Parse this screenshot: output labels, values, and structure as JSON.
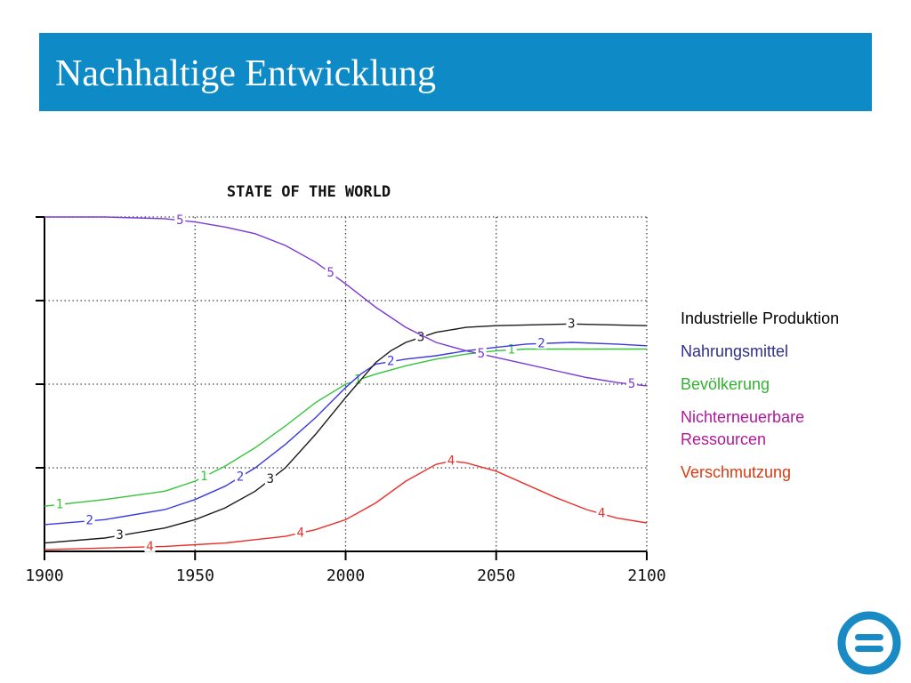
{
  "slide": {
    "title": "Nachhaltige Entwicklung"
  },
  "colors": {
    "title_bar": "#0e8ac7",
    "logo": "#1a8ac4"
  },
  "chart_data": {
    "type": "line",
    "title": "STATE OF THE WORLD",
    "x_ticks": [
      1900,
      1950,
      2000,
      2050,
      2100
    ],
    "xlim": [
      1900,
      2100
    ],
    "ylim": [
      0,
      1
    ],
    "grid": true,
    "series": [
      {
        "key": "1",
        "color": "#33c43a",
        "marker_x": [
          1905,
          1953,
          2004,
          2055
        ],
        "points": [
          [
            1900,
            0.135
          ],
          [
            1920,
            0.155
          ],
          [
            1940,
            0.18
          ],
          [
            1950,
            0.21
          ],
          [
            1960,
            0.255
          ],
          [
            1970,
            0.31
          ],
          [
            1980,
            0.375
          ],
          [
            1990,
            0.445
          ],
          [
            2000,
            0.5
          ],
          [
            2010,
            0.53
          ],
          [
            2020,
            0.555
          ],
          [
            2030,
            0.575
          ],
          [
            2040,
            0.59
          ],
          [
            2050,
            0.6
          ],
          [
            2060,
            0.605
          ],
          [
            2075,
            0.605
          ],
          [
            2100,
            0.605
          ]
        ]
      },
      {
        "key": "2",
        "color": "#3a3ae0",
        "marker_x": [
          1915,
          1965,
          2015,
          2065
        ],
        "points": [
          [
            1900,
            0.08
          ],
          [
            1920,
            0.095
          ],
          [
            1940,
            0.125
          ],
          [
            1950,
            0.155
          ],
          [
            1960,
            0.195
          ],
          [
            1970,
            0.25
          ],
          [
            1980,
            0.32
          ],
          [
            1990,
            0.4
          ],
          [
            2000,
            0.49
          ],
          [
            2005,
            0.53
          ],
          [
            2010,
            0.56
          ],
          [
            2020,
            0.575
          ],
          [
            2030,
            0.585
          ],
          [
            2040,
            0.6
          ],
          [
            2050,
            0.61
          ],
          [
            2060,
            0.62
          ],
          [
            2075,
            0.625
          ],
          [
            2090,
            0.62
          ],
          [
            2100,
            0.615
          ]
        ]
      },
      {
        "key": "3",
        "color": "#1a1a1a",
        "marker_x": [
          1925,
          1975,
          2025,
          2075
        ],
        "points": [
          [
            1900,
            0.025
          ],
          [
            1920,
            0.04
          ],
          [
            1940,
            0.07
          ],
          [
            1950,
            0.095
          ],
          [
            1960,
            0.13
          ],
          [
            1970,
            0.18
          ],
          [
            1980,
            0.25
          ],
          [
            1990,
            0.35
          ],
          [
            2000,
            0.46
          ],
          [
            2010,
            0.565
          ],
          [
            2015,
            0.6
          ],
          [
            2020,
            0.625
          ],
          [
            2030,
            0.655
          ],
          [
            2040,
            0.67
          ],
          [
            2050,
            0.675
          ],
          [
            2075,
            0.68
          ],
          [
            2100,
            0.675
          ]
        ]
      },
      {
        "key": "4",
        "color": "#e8312a",
        "marker_x": [
          1935,
          1985,
          2035,
          2085
        ],
        "points": [
          [
            1900,
            0.005
          ],
          [
            1920,
            0.01
          ],
          [
            1940,
            0.015
          ],
          [
            1950,
            0.02
          ],
          [
            1960,
            0.025
          ],
          [
            1970,
            0.035
          ],
          [
            1980,
            0.045
          ],
          [
            1990,
            0.065
          ],
          [
            2000,
            0.095
          ],
          [
            2010,
            0.145
          ],
          [
            2020,
            0.21
          ],
          [
            2030,
            0.26
          ],
          [
            2035,
            0.27
          ],
          [
            2040,
            0.265
          ],
          [
            2050,
            0.24
          ],
          [
            2060,
            0.2
          ],
          [
            2070,
            0.16
          ],
          [
            2080,
            0.125
          ],
          [
            2090,
            0.1
          ],
          [
            2100,
            0.085
          ]
        ]
      },
      {
        "key": "5",
        "color": "#7a3ad6",
        "marker_x": [
          1945,
          1995,
          2045,
          2095
        ],
        "points": [
          [
            1900,
            1.0
          ],
          [
            1920,
            1.0
          ],
          [
            1940,
            0.995
          ],
          [
            1950,
            0.985
          ],
          [
            1960,
            0.97
          ],
          [
            1970,
            0.95
          ],
          [
            1980,
            0.915
          ],
          [
            1990,
            0.865
          ],
          [
            2000,
            0.8
          ],
          [
            2010,
            0.73
          ],
          [
            2020,
            0.67
          ],
          [
            2030,
            0.625
          ],
          [
            2040,
            0.6
          ],
          [
            2050,
            0.58
          ],
          [
            2060,
            0.56
          ],
          [
            2070,
            0.54
          ],
          [
            2080,
            0.52
          ],
          [
            2090,
            0.505
          ],
          [
            2100,
            0.495
          ]
        ]
      }
    ]
  },
  "legend": [
    {
      "label": "Industrielle Produktion",
      "color": "#000000"
    },
    {
      "label": "Nahrungsmittel",
      "color": "#2e2e8f"
    },
    {
      "label": "Bevölkerung",
      "color": "#33b032"
    },
    {
      "label": "Nichterneuerbare\n       Ressourcen",
      "color": "#b0189b"
    },
    {
      "label": "Verschmutzung",
      "color": "#d93a10"
    }
  ]
}
